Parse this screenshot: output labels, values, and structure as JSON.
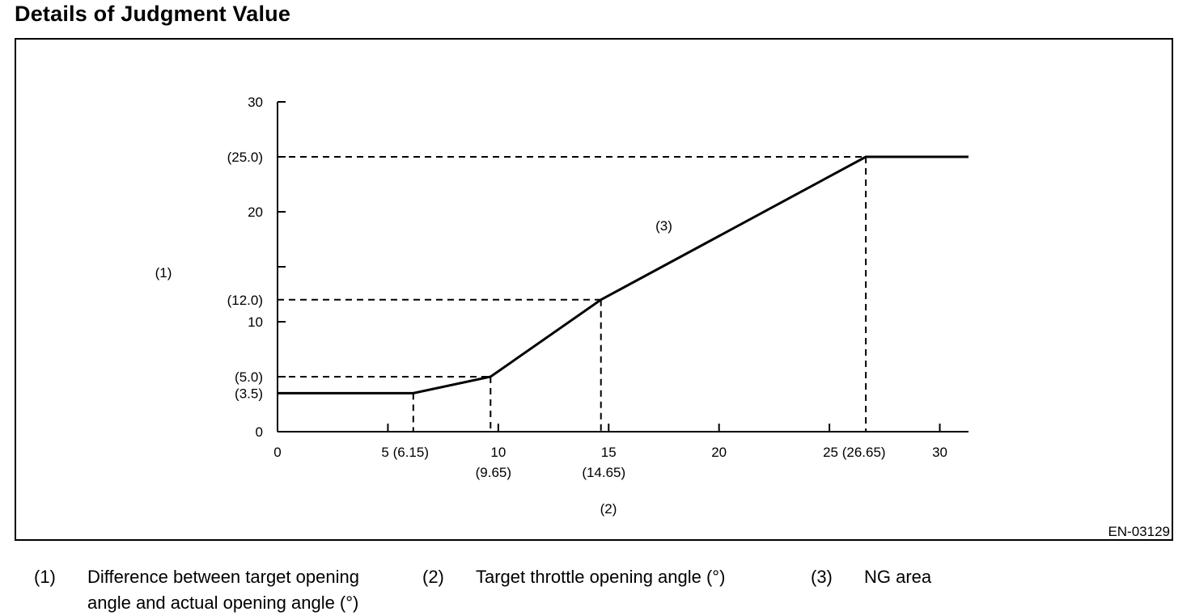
{
  "page": {
    "title": "Details of Judgment Value",
    "figure_id": "EN-03129"
  },
  "chart_data": {
    "type": "line",
    "xlabel": "(2)",
    "ylabel": "(1)",
    "xlim": [
      0,
      31.3
    ],
    "ylim": [
      0,
      30
    ],
    "x_ticks": [
      {
        "value": 0,
        "label": "0",
        "sublabel": ""
      },
      {
        "value": 5,
        "label": "5 (6.15)",
        "sublabel": ""
      },
      {
        "value": 10,
        "label": "10",
        "sublabel": "(9.65)"
      },
      {
        "value": 15,
        "label": "15",
        "sublabel": "(14.65)"
      },
      {
        "value": 20,
        "label": "20",
        "sublabel": ""
      },
      {
        "value": 25,
        "label": "25 (26.65)",
        "sublabel": ""
      },
      {
        "value": 30,
        "label": "30",
        "sublabel": ""
      }
    ],
    "y_ticks": [
      {
        "value": 0,
        "label": "0"
      },
      {
        "value": 5,
        "label": ""
      },
      {
        "value": 10,
        "label": "10"
      },
      {
        "value": 15,
        "label": ""
      },
      {
        "value": 20,
        "label": "20"
      },
      {
        "value": 25,
        "label": ""
      },
      {
        "value": 30,
        "label": "30"
      }
    ],
    "series": [
      {
        "x": [
          0,
          6.15,
          9.65,
          14.65,
          26.65,
          31.3
        ],
        "y": [
          3.5,
          3.5,
          5.0,
          12.0,
          25.0,
          25.0
        ]
      }
    ],
    "reference_y": [
      {
        "value": 25.0,
        "label": "(25.0)",
        "x_end": 26.65
      },
      {
        "value": 12.0,
        "label": "(12.0)",
        "x_end": 14.65
      },
      {
        "value": 5.0,
        "label": "(5.0)",
        "x_end": 9.65
      },
      {
        "value": 3.5,
        "label": "(3.5)",
        "x_end": 0
      }
    ],
    "reference_x": [
      {
        "value": 6.15,
        "y_end": 3.5
      },
      {
        "value": 9.65,
        "y_end": 5.0
      },
      {
        "value": 14.65,
        "y_end": 12.0
      },
      {
        "value": 26.65,
        "y_end": 25.0
      }
    ],
    "annotations": [
      {
        "text": "(3)",
        "x": 17.5,
        "y": 18.3
      }
    ]
  },
  "legend": [
    {
      "num": "(1)",
      "lines": [
        "Difference between target opening",
        "angle and actual opening angle (°)"
      ]
    },
    {
      "num": "(2)",
      "lines": [
        "Target throttle opening angle (°)"
      ]
    },
    {
      "num": "(3)",
      "lines": [
        "NG area"
      ]
    }
  ]
}
